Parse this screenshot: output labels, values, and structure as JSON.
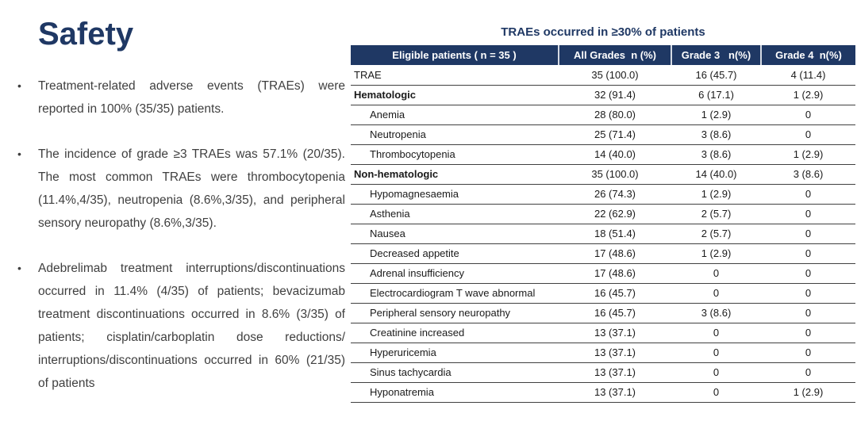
{
  "colors": {
    "navy": "#1F3864",
    "body_text": "#3F3F3F",
    "row_border": "#404040",
    "header_text": "#FFFFFF"
  },
  "left_panel": {
    "title": "Safety",
    "bullet_marker": "•",
    "bullets": [
      "Treatment-related adverse events (TRAEs) were reported in 100% (35/35) patients.",
      "The incidence of grade ≥3 TRAEs was 57.1% (20/35). The most common TRAEs were thrombocytopenia (11.4%,4/35), neutropenia (8.6%,3/35), and peripheral sensory neuropathy (8.6%,3/35).",
      "Adebrelimab treatment interruptions/discontinuations occurred in 11.4% (4/35) of patients; bevacizumab treatment discontinuations occurred in 8.6% (3/35) of patients; cisplatin/carboplatin dose reductions/ interruptions/discontinuations occurred in 60% (21/35) of patients"
    ]
  },
  "table": {
    "title": "TRAEs occurred in ≥30% of patients",
    "columns": [
      "Eligible patients ( n = 35 )",
      "All Grades  n (%)",
      "Grade 3   n(%)",
      "Grade 4  n(%)"
    ],
    "rows": [
      {
        "label": "TRAE",
        "style": "plain",
        "values": [
          "35 (100.0)",
          "16 (45.7)",
          "4 (11.4)"
        ]
      },
      {
        "label": "Hematologic",
        "style": "category",
        "values": [
          "32 (91.4)",
          "6 (17.1)",
          "1 (2.9)"
        ]
      },
      {
        "label": "Anemia",
        "style": "sub",
        "values": [
          "28 (80.0)",
          "1 (2.9)",
          "0"
        ]
      },
      {
        "label": "Neutropenia",
        "style": "sub",
        "values": [
          "25 (71.4)",
          "3 (8.6)",
          "0"
        ]
      },
      {
        "label": "Thrombocytopenia",
        "style": "sub",
        "values": [
          "14 (40.0)",
          "3 (8.6)",
          "1 (2.9)"
        ]
      },
      {
        "label": "Non-hematologic",
        "style": "category",
        "values": [
          "35 (100.0)",
          "14 (40.0)",
          "3 (8.6)"
        ]
      },
      {
        "label": "Hypomagnesaemia",
        "style": "sub",
        "values": [
          "26 (74.3)",
          "1 (2.9)",
          "0"
        ]
      },
      {
        "label": "Asthenia",
        "style": "sub",
        "values": [
          "22 (62.9)",
          "2 (5.7)",
          "0"
        ]
      },
      {
        "label": "Nausea",
        "style": "sub",
        "values": [
          "18 (51.4)",
          "2 (5.7)",
          "0"
        ]
      },
      {
        "label": "Decreased appetite",
        "style": "sub",
        "values": [
          "17 (48.6)",
          "1 (2.9)",
          "0"
        ]
      },
      {
        "label": "Adrenal insufficiency",
        "style": "sub",
        "values": [
          "17 (48.6)",
          "0",
          "0"
        ]
      },
      {
        "label": "Electrocardiogram T wave abnormal",
        "style": "sub",
        "values": [
          "16 (45.7)",
          "0",
          "0"
        ]
      },
      {
        "label": "Peripheral sensory neuropathy",
        "style": "sub",
        "values": [
          "16 (45.7)",
          "3 (8.6)",
          "0"
        ]
      },
      {
        "label": "Creatinine increased",
        "style": "sub",
        "values": [
          "13 (37.1)",
          "0",
          "0"
        ]
      },
      {
        "label": "Hyperuricemia",
        "style": "sub",
        "values": [
          "13 (37.1)",
          "0",
          "0"
        ]
      },
      {
        "label": "Sinus tachycardia",
        "style": "sub",
        "values": [
          "13 (37.1)",
          "0",
          "0"
        ]
      },
      {
        "label": "Hyponatremia",
        "style": "sub",
        "values": [
          "13 (37.1)",
          "0",
          "1 (2.9)"
        ]
      }
    ]
  }
}
